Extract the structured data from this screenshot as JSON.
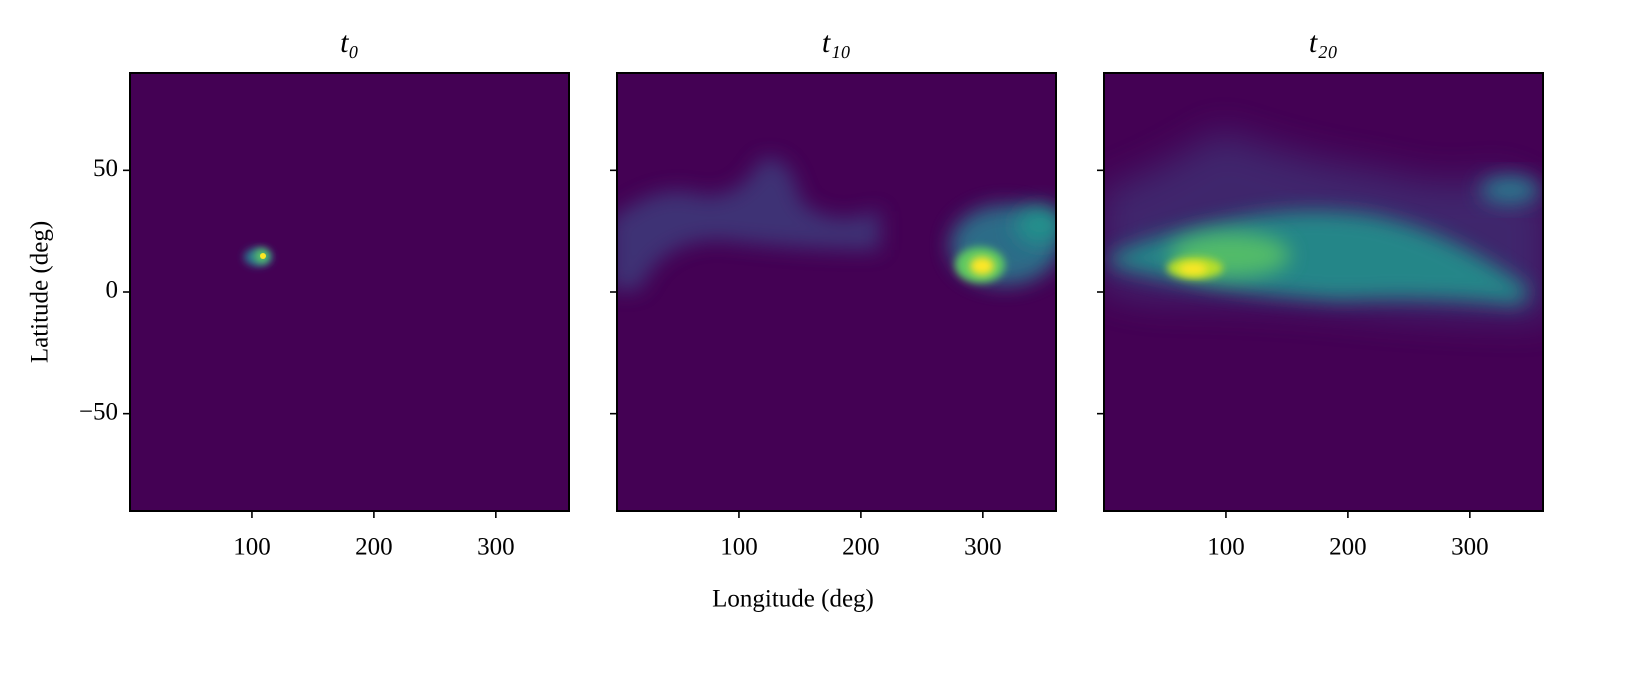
{
  "xlabel": "Longitude (deg)",
  "ylabel": "Latitude (deg)",
  "chart_data": [
    {
      "type": "heatmap",
      "title": "t₀",
      "color": "#440154",
      "xlim": [
        0,
        360
      ],
      "xticks": [
        100,
        200,
        300
      ],
      "ylim": [
        -90,
        90
      ],
      "yticks": [
        50,
        0,
        {
          "value": -50,
          "label": "−50"
        }
      ],
      "show_yticklabels": true
    },
    {
      "type": "heatmap",
      "title": "t₁₀",
      "color": "#440154",
      "xlim": [
        0,
        360
      ],
      "xticks": [
        100,
        200,
        300
      ],
      "ylim": [
        -90,
        90
      ],
      "yticks": [
        50,
        0,
        {
          "value": -50,
          "label": "−50"
        }
      ],
      "show_yticklabels": false
    },
    {
      "type": "heatmap",
      "title": "t₂₀",
      "color": "#440154",
      "xlim": [
        0,
        360
      ],
      "xticks": [
        100,
        200,
        300
      ],
      "ylim": [
        -90,
        90
      ],
      "yticks": [
        50,
        0,
        {
          "value": -50,
          "label": "−50"
        }
      ],
      "show_yticklabels": false
    }
  ]
}
